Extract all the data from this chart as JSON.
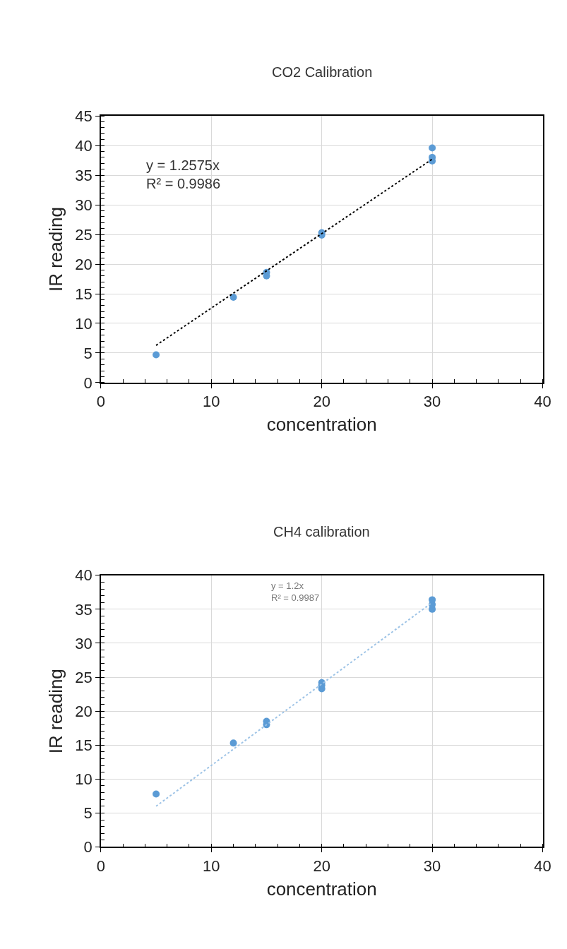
{
  "chart_data": [
    {
      "type": "scatter",
      "title": "CO2 Calibration",
      "xlabel": "concentration",
      "ylabel": "IR reading",
      "series": [
        {
          "color": "#5b9bd5",
          "marker": "circle",
          "x": [
            5,
            12,
            15,
            15,
            20,
            20,
            30,
            30,
            30
          ],
          "values": [
            4.7,
            14.4,
            18.0,
            18.6,
            24.9,
            25.3,
            37.4,
            38.0,
            39.6
          ]
        },
        {
          "type": "line",
          "color": "#000000",
          "line_style": "dotted",
          "marker": "none",
          "x": [
            5,
            30
          ],
          "values": [
            6.3,
            37.7
          ]
        }
      ],
      "annotations": [
        "y = 1.2575x\nR² = 0.9986"
      ],
      "xlim": [
        0,
        40
      ],
      "xticks": [
        0,
        10,
        20,
        30,
        40
      ],
      "ylim": [
        0,
        45
      ],
      "yticks": [
        0,
        5,
        10,
        15,
        20,
        25,
        30,
        35,
        40,
        45
      ],
      "grid": true
    },
    {
      "type": "scatter",
      "title": "CH4 calibration",
      "xlabel": "concentration",
      "ylabel": "IR reading",
      "series": [
        {
          "color": "#5b9bd5",
          "marker": "circle",
          "x": [
            5,
            12,
            15,
            15,
            20,
            20,
            20,
            30,
            30,
            30
          ],
          "values": [
            7.8,
            15.3,
            18.0,
            18.5,
            23.3,
            23.8,
            24.2,
            35.0,
            35.7,
            36.4
          ]
        },
        {
          "type": "line",
          "color": "#9dc3e6",
          "line_style": "dotted",
          "marker": "none",
          "x": [
            5,
            30
          ],
          "values": [
            6.0,
            36.0
          ]
        }
      ],
      "annotations": [
        "y = 1.2x\nR² = 0.9987"
      ],
      "xlim": [
        0,
        40
      ],
      "xticks": [
        0,
        10,
        20,
        30,
        40
      ],
      "ylim": [
        0,
        40
      ],
      "yticks": [
        0,
        5,
        10,
        15,
        20,
        25,
        30,
        35,
        40
      ],
      "grid": true
    }
  ]
}
